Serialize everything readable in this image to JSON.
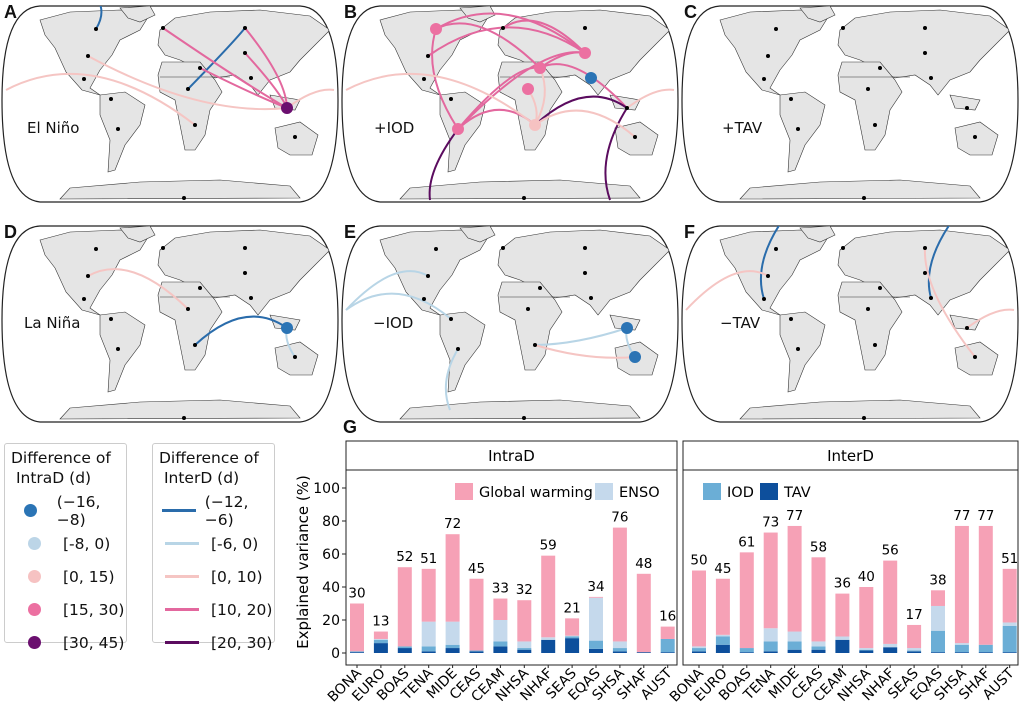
{
  "colors": {
    "intra": [
      "#2b74b5",
      "#bcd5e7",
      "#f6c2c2",
      "#ec70a1",
      "#6b0f6f"
    ],
    "inter": [
      "#2a6cab",
      "#b8d5e6",
      "#f5c5c3",
      "#e3689e",
      "#5b0c5f"
    ],
    "global_warming": "#f6a1b6",
    "enso": "#c5d9ec",
    "iod": "#6baed6",
    "tav": "#0d4f9c",
    "land": "#e5e5e5"
  },
  "panels": [
    {
      "letter": "A",
      "label": "El Niño",
      "nodes": [
        {
          "region": "EQAS",
          "class": 4
        }
      ],
      "links": [
        {
          "from": "BONA",
          "to": "NPOLE",
          "class": 0
        },
        {
          "from": "NHAF",
          "to": "BOAS",
          "class": 0
        },
        {
          "from": "EQAS",
          "to": "EURO",
          "class": 3
        },
        {
          "from": "EQAS",
          "to": "MIDE",
          "class": 3
        },
        {
          "from": "EQAS",
          "to": "BOAS",
          "class": 3
        },
        {
          "from": "EQAS",
          "to": "CEAS",
          "class": 3
        },
        {
          "from": "EQAS",
          "to": "TENA",
          "class": 2
        },
        {
          "from": "WEST",
          "to": "SHAF",
          "class": 2
        },
        {
          "from": "EQAS",
          "to": "EAST",
          "class": 2
        }
      ]
    },
    {
      "letter": "B",
      "label": "+IOD",
      "nodes": [
        {
          "region": "BONA",
          "class": 3
        },
        {
          "region": "SHSA",
          "class": 3
        },
        {
          "region": "MIDE",
          "class": 3
        },
        {
          "region": "CEAS",
          "class": 3
        },
        {
          "region": "NHAF",
          "class": 3
        },
        {
          "region": "SEAS",
          "class": 0
        },
        {
          "region": "SHAF",
          "class": 2
        }
      ],
      "links": [
        {
          "from": "BONA",
          "to": "SHSA",
          "class": 3
        },
        {
          "from": "BONA",
          "to": "MIDE",
          "class": 3
        },
        {
          "from": "BONA",
          "to": "CEAS",
          "class": 3
        },
        {
          "from": "TENA",
          "to": "CEAS",
          "class": 3
        },
        {
          "from": "SHSA",
          "to": "MIDE",
          "class": 3
        },
        {
          "from": "SHSA",
          "to": "CEAS",
          "class": 3
        },
        {
          "from": "SHSA",
          "to": "SHAF",
          "class": 3
        },
        {
          "from": "MIDE",
          "to": "EQAS",
          "class": 3
        },
        {
          "from": "MIDE",
          "to": "CEAS",
          "class": 3
        },
        {
          "from": "EURO",
          "to": "CEAS",
          "class": 3
        },
        {
          "from": "SHAF",
          "to": "EQAS",
          "class": 4
        },
        {
          "from": "SHSA",
          "to": "SPOLE",
          "class": 4
        },
        {
          "from": "EQAS",
          "to": "SPOLE2",
          "class": 4
        },
        {
          "from": "SHAF",
          "to": "MIDE",
          "class": 2
        },
        {
          "from": "SHAF",
          "to": "NHAF",
          "class": 2
        },
        {
          "from": "SHAF",
          "to": "AUST",
          "class": 2
        },
        {
          "from": "WEST",
          "to": "SHAF",
          "class": 2
        },
        {
          "from": "EQAS",
          "to": "EAST",
          "class": 2
        }
      ]
    },
    {
      "letter": "C",
      "label": "+TAV",
      "nodes": [],
      "links": []
    },
    {
      "letter": "D",
      "label": "La Niña",
      "nodes": [
        {
          "region": "EQAS",
          "class": 0
        }
      ],
      "links": [
        {
          "from": "SHAF",
          "to": "EQAS",
          "class": 0
        },
        {
          "from": "TENA",
          "to": "NHAF",
          "class": 2
        },
        {
          "from": "EQAS",
          "to": "AUST",
          "class": 1
        }
      ]
    },
    {
      "letter": "E",
      "label": "−IOD",
      "nodes": [
        {
          "region": "EQAS",
          "class": 0
        },
        {
          "region": "AUST",
          "class": 0
        }
      ],
      "links": [
        {
          "from": "WEST",
          "to": "TENA",
          "class": 1
        },
        {
          "from": "WEST",
          "to": "NHSA",
          "class": 1
        },
        {
          "from": "SHSA",
          "to": "SOUTH",
          "class": 1
        },
        {
          "from": "EQAS",
          "to": "SHAF",
          "class": 1
        },
        {
          "from": "AUST",
          "to": "SHAF",
          "class": 2
        },
        {
          "from": "EQAS",
          "to": "AUST",
          "class": 1
        }
      ]
    },
    {
      "letter": "F",
      "label": "−TAV",
      "nodes": [],
      "links": [
        {
          "from": "NPOLE",
          "to": "CEAM",
          "class": 0
        },
        {
          "from": "NPOLE2",
          "to": "SEAS",
          "class": 0
        },
        {
          "from": "WEST",
          "to": "TENA",
          "class": 2
        },
        {
          "from": "BOAS",
          "to": "AUST",
          "class": 2
        },
        {
          "from": "EQAS",
          "to": "EAST",
          "class": 2
        }
      ]
    }
  ],
  "legend_intra": {
    "title_line1": "Difference of",
    "title_line2": "IntraD (d)",
    "items": [
      "(−16, −8)",
      "[-8, 0)",
      "[0, 15)",
      "[15, 30)",
      "[30, 45)"
    ]
  },
  "legend_inter": {
    "title_line1": "Difference of",
    "title_line2": "InterD (d)",
    "items": [
      "(−12, −6)",
      "[-6, 0)",
      "[0, 10)",
      "[10, 20)",
      "[20, 30)"
    ]
  },
  "chart_data": {
    "type": "bar",
    "stacked": true,
    "panel_letter": "G",
    "ylabel": "Explained variance (%)",
    "ylim": [
      0,
      100
    ],
    "yticks": [
      0,
      20,
      40,
      60,
      80,
      100
    ],
    "categories": [
      "BONA",
      "EURO",
      "BOAS",
      "TENA",
      "MIDE",
      "CEAS",
      "CEAM",
      "NHSA",
      "NHAF",
      "SEAS",
      "EQAS",
      "SHSA",
      "SHAF",
      "AUST"
    ],
    "facets": [
      {
        "name": "IntraD",
        "legend": [
          "Global warming",
          "ENSO"
        ],
        "totals": [
          30,
          13,
          52,
          51,
          72,
          45,
          33,
          32,
          59,
          21,
          34,
          76,
          48,
          16
        ],
        "series": [
          {
            "name": "TAV",
            "values": [
              0.5,
              6,
              3,
              1,
              3,
              1,
              4,
              2,
              8,
              9,
              2.5,
              1,
              0.5,
              0.5
            ]
          },
          {
            "name": "IOD",
            "values": [
              0.5,
              2,
              1,
              3,
              2,
              0.5,
              3,
              1,
              0,
              1,
              5,
              2,
              0,
              8
            ]
          },
          {
            "name": "ENSO",
            "values": [
              0,
              0.5,
              0,
              15,
              14,
              0,
              13,
              4,
              1.5,
              0.5,
              26,
              4,
              0,
              0
            ]
          },
          {
            "name": "Global warming",
            "values": [
              29,
              4.5,
              48,
              32,
              53,
              43.5,
              13,
              25,
              49.5,
              10.5,
              0.5,
              69,
              47.5,
              7.5
            ]
          }
        ]
      },
      {
        "name": "InterD",
        "legend": [
          "IOD",
          "TAV"
        ],
        "totals": [
          50,
          45,
          61,
          73,
          77,
          58,
          36,
          40,
          56,
          17,
          38,
          77,
          77,
          51
        ],
        "series": [
          {
            "name": "TAV",
            "values": [
              1,
              5,
              0.5,
              1,
              2,
              2,
              8,
              1.5,
              3.5,
              1,
              0.5,
              0.5,
              0.5,
              0.5
            ]
          },
          {
            "name": "IOD",
            "values": [
              2,
              5,
              2.5,
              6,
              5,
              2,
              0,
              0.5,
              0,
              0.5,
              13,
              4.5,
              4.5,
              16
            ]
          },
          {
            "name": "ENSO",
            "values": [
              1,
              1,
              0,
              8,
              6,
              3,
              2,
              1,
              2,
              1.5,
              15,
              1,
              0,
              2
            ]
          },
          {
            "name": "Global warming",
            "values": [
              46,
              34,
              58,
              58,
              64,
              51,
              26,
              37,
              50.5,
              14,
              9.5,
              71,
              72,
              32.5
            ]
          }
        ]
      }
    ]
  }
}
